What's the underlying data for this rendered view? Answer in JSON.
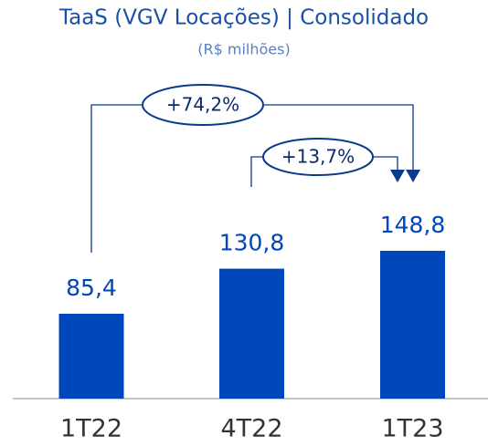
{
  "chart_data": {
    "type": "bar",
    "title": "TaaS (VGV Locações) | Consolidado",
    "subtitle": "(R$ milhões)",
    "categories": [
      "1T22",
      "4T22",
      "1T23"
    ],
    "values": [
      85.4,
      130.8,
      148.8
    ],
    "value_labels": [
      "85,4",
      "130,8",
      "148,8"
    ],
    "color": "#0047bb",
    "annotations": [
      "+74,2%",
      "+13,7%"
    ]
  }
}
